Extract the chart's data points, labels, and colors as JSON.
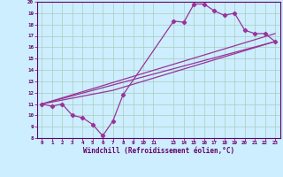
{
  "xlabel": "Windchill (Refroidissement éolien,°C)",
  "background_color": "#cceeff",
  "grid_color": "#aaccbb",
  "line_color": "#993399",
  "xlim": [
    -0.5,
    23.5
  ],
  "ylim": [
    8,
    20
  ],
  "yticks": [
    8,
    9,
    10,
    11,
    12,
    13,
    14,
    15,
    16,
    17,
    18,
    19,
    20
  ],
  "line1_x": [
    0,
    1,
    2,
    3,
    4,
    5,
    6,
    7,
    8,
    13,
    14,
    15,
    16,
    17,
    18,
    19,
    20,
    21,
    22,
    23
  ],
  "line1_y": [
    11.0,
    10.8,
    11.0,
    10.0,
    9.8,
    9.2,
    8.2,
    9.5,
    11.8,
    18.3,
    18.2,
    19.8,
    19.8,
    19.2,
    18.8,
    19.0,
    17.5,
    17.2,
    17.2,
    16.5
  ],
  "line2_x": [
    0,
    23
  ],
  "line2_y": [
    11.0,
    16.5
  ],
  "line3_x": [
    0,
    7,
    23
  ],
  "line3_y": [
    11.0,
    12.2,
    16.5
  ],
  "line4_x": [
    0,
    23
  ],
  "line4_y": [
    11.0,
    17.2
  ]
}
